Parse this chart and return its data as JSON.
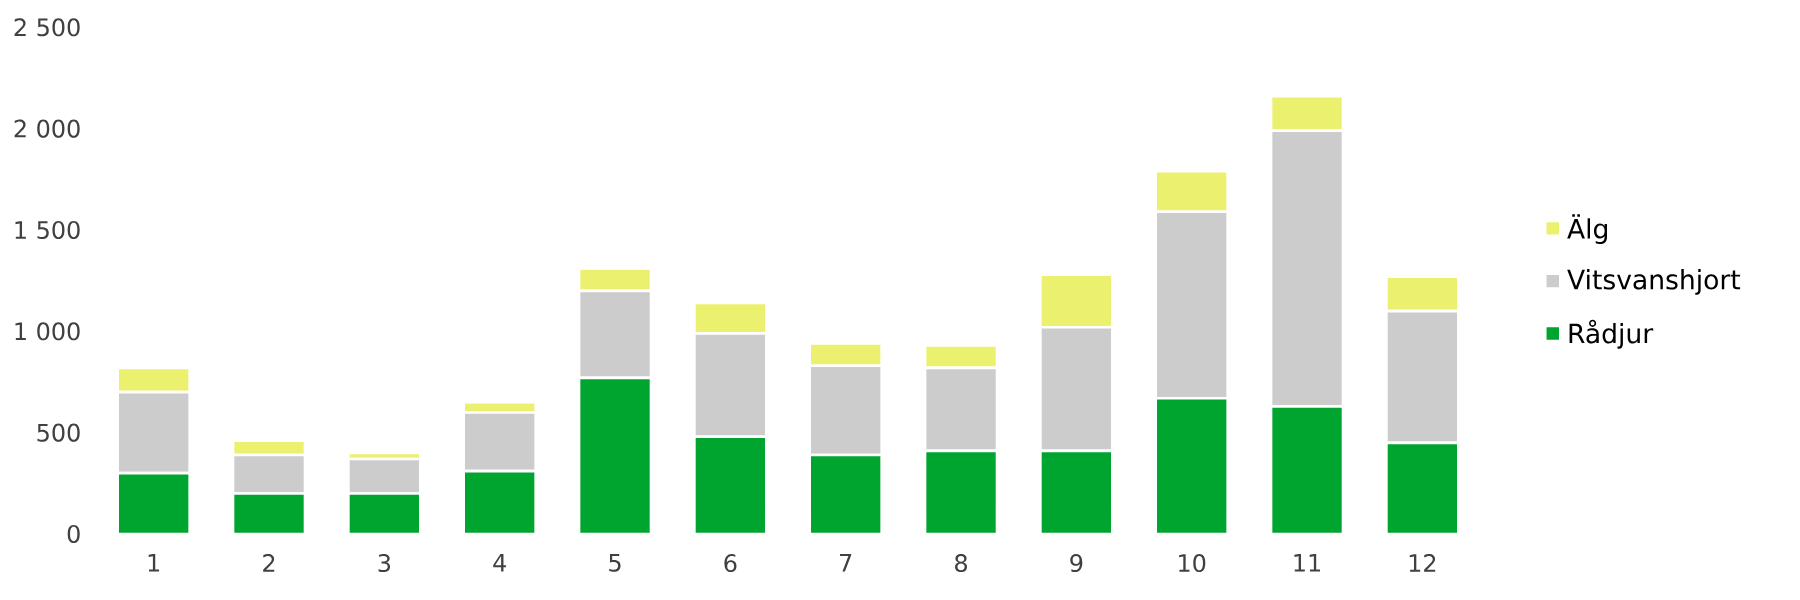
{
  "chart_data": {
    "type": "bar",
    "stacked": true,
    "categories": [
      "1",
      "2",
      "3",
      "4",
      "5",
      "6",
      "7",
      "8",
      "9",
      "10",
      "11",
      "12"
    ],
    "series": [
      {
        "name": "Rådjur",
        "color": "#00a530",
        "values": [
          300,
          200,
          200,
          310,
          770,
          480,
          390,
          410,
          410,
          670,
          630,
          450
        ]
      },
      {
        "name": "Vitsvanshjort",
        "color": "#cccccc",
        "values": [
          400,
          190,
          170,
          290,
          430,
          510,
          440,
          410,
          610,
          920,
          1360,
          650
        ]
      },
      {
        "name": "Älg",
        "color": "#ebf06e",
        "values": [
          120,
          70,
          30,
          50,
          110,
          150,
          110,
          110,
          260,
          200,
          170,
          170
        ]
      }
    ],
    "ylim": [
      0,
      2500
    ],
    "yticks": [
      0,
      500,
      {
        "value": 1000,
        "label": "1 000"
      },
      {
        "value": 1500,
        "label": "1 500"
      },
      {
        "value": 2000,
        "label": "2 000"
      },
      {
        "value": 2500,
        "label": "2 500"
      }
    ],
    "grid": false,
    "legend": "right"
  }
}
